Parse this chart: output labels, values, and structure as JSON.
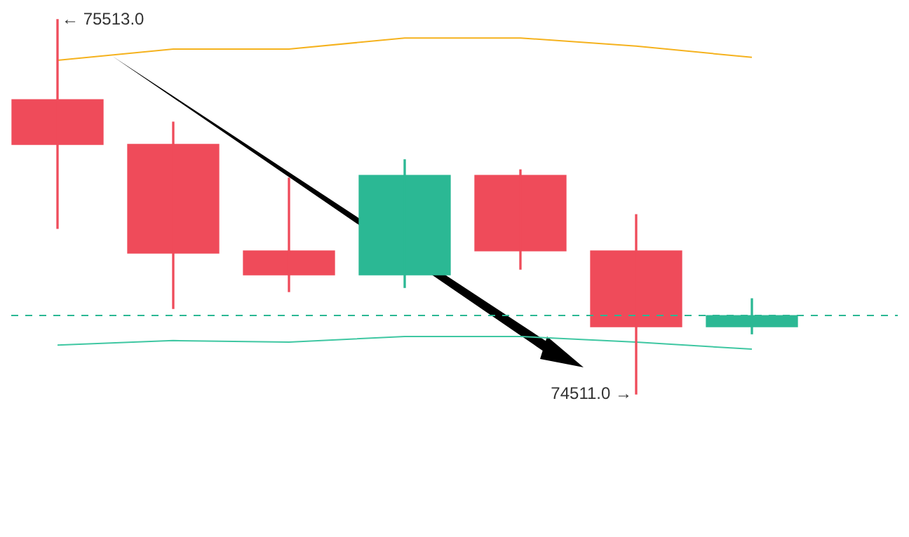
{
  "chart_data": {
    "type": "candlestick",
    "categories": [
      null,
      null,
      null,
      null,
      null,
      null,
      null
    ],
    "ohlc": [
      [
        75299,
        75513,
        74954,
        75179
      ],
      [
        75179,
        75239,
        74740,
        74888
      ],
      [
        74894,
        75089,
        74785,
        74830
      ],
      [
        74830,
        75138,
        74796,
        75096
      ],
      [
        75096,
        75111,
        74845,
        74894
      ],
      [
        74894,
        74991,
        74511,
        74691
      ],
      [
        74691,
        74766,
        74672,
        74721
      ]
    ],
    "colors": [
      "#ef4b5a",
      "#ef4b5a",
      "#ef4b5a",
      "#2bb894",
      "#ef4b5a",
      "#ef4b5a",
      "#2bb894"
    ],
    "series": [
      {
        "type": "line",
        "color": "#f5b21e",
        "values": [
          75404,
          75434,
          75434,
          75464,
          75464,
          75442,
          75412
        ]
      },
      {
        "type": "line",
        "color": "#3fc7a2",
        "values": [
          74642,
          74654,
          74650,
          74665,
          74665,
          74650,
          74631
        ]
      }
    ],
    "ref_lines": [
      {
        "axis": "y",
        "value": 74721,
        "color": "#2bb894",
        "line_style": "dashed"
      }
    ],
    "annotations": [
      "← 75513.0",
      "74511.0 →"
    ],
    "grid": false,
    "legend": false
  }
}
